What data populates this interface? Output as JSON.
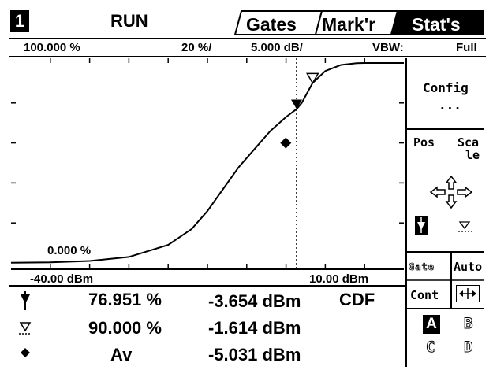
{
  "header": {
    "channel": "1",
    "state": "RUN",
    "tabs": [
      "Gates",
      "Mark'r",
      "Stat's"
    ],
    "active_tab": "Stat's"
  },
  "info": {
    "y_top": "100.000 %",
    "y_div": "20 %/",
    "x_div": "5.000 dB/",
    "vbw_label": "VBW:",
    "vbw_value": "Full"
  },
  "plot": {
    "y_bottom": "0.000 %",
    "x_left": "-40.00 dBm",
    "x_right": "10.00 dBm"
  },
  "chart_data": {
    "type": "line",
    "series": [
      {
        "values": [
          [
            -40,
            0.1
          ],
          [
            -35,
            0.3
          ],
          [
            -30,
            1
          ],
          [
            -25,
            3
          ],
          [
            -20,
            9
          ],
          [
            -17,
            17
          ],
          [
            -15,
            26
          ],
          [
            -13,
            37
          ],
          [
            -11,
            48
          ],
          [
            -9,
            57
          ],
          [
            -7,
            66
          ],
          [
            -5,
            73
          ],
          [
            -3.654,
            76.951
          ],
          [
            -3,
            80
          ],
          [
            -1.614,
            90
          ],
          [
            0,
            96
          ],
          [
            2,
            99
          ],
          [
            4,
            99.9
          ],
          [
            5,
            100
          ],
          [
            10,
            100
          ]
        ]
      }
    ],
    "xlim": [
      -40,
      10
    ],
    "ylim": [
      0,
      100
    ],
    "markers": [
      {
        "symbol": "filled-down-triangle",
        "x": -3.654,
        "y": 76.951
      },
      {
        "symbol": "open-down-triangle",
        "x": -1.614,
        "y": 90.0
      },
      {
        "symbol": "diamond",
        "x": -5.031,
        "y": 60
      }
    ],
    "cursor_x": -3.654
  },
  "softkeys": {
    "config": "Config",
    "config_more": "...",
    "pos": "Pos",
    "scale_a": "Sca",
    "scale_b": "le",
    "gate": "Gate",
    "auto": "Auto",
    "cont": "Cont",
    "channels": [
      "A",
      "B",
      "C",
      "D"
    ]
  },
  "readout": {
    "rows": [
      {
        "marker": "filled-down-triangle",
        "value": "76.951 %",
        "power": "-3.654 dBm",
        "extra": "CDF"
      },
      {
        "marker": "open-down-triangle",
        "value": "90.000 %",
        "power": "-1.614 dBm",
        "extra": ""
      },
      {
        "marker": "diamond",
        "value": "Av",
        "power": "-5.031 dBm",
        "extra": ""
      }
    ]
  }
}
